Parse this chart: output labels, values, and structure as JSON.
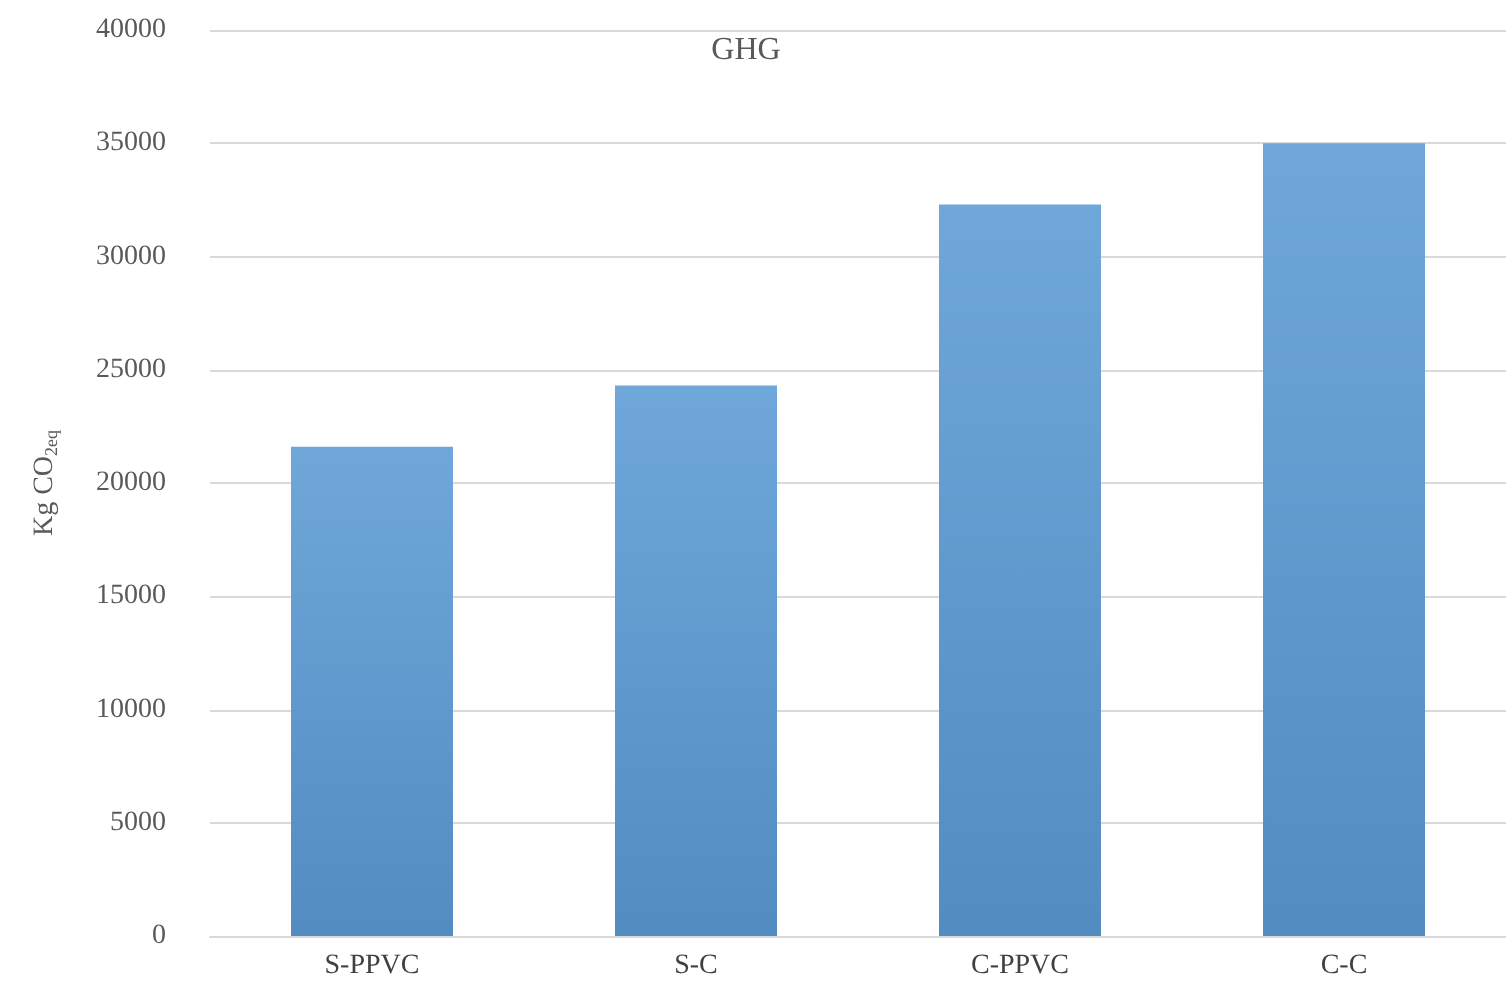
{
  "chart_data": {
    "type": "bar",
    "title": "GHG",
    "ylabel": "Kg CO$_{2eq}$",
    "categories": [
      "S-PPVC",
      "S-C",
      "C-PPVC",
      "C-C"
    ],
    "values": [
      21600,
      24300,
      32300,
      35000
    ],
    "color": "#5b9bd5",
    "ylim": [
      0,
      40000
    ],
    "yticks": [
      0,
      5000,
      10000,
      15000,
      20000,
      25000,
      30000,
      35000,
      40000
    ],
    "grid": "y"
  }
}
